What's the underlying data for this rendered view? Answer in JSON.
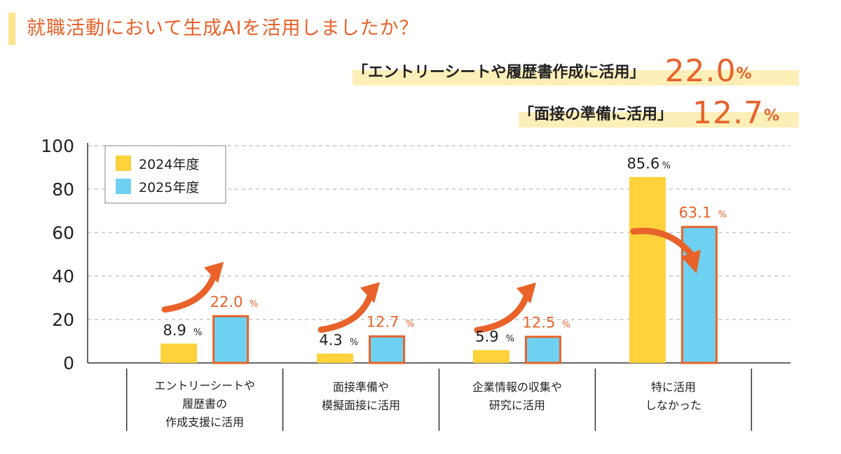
{
  "title": "就職活動において生成AIを活用しましたか？",
  "highlights": [
    {
      "text": "「エントリーシートや履歴書作成に活用」",
      "value": "22.0",
      "unit": "%"
    },
    {
      "text": "「面接の準備に活用」",
      "value": "12.7",
      "unit": "%"
    }
  ],
  "colors": {
    "accent": "#e8622a",
    "bar_2024": "#fdd23b",
    "bar_2025": "#6fd1f1",
    "bar_2025_border": "#e8622a",
    "grid": "#bbbbbb",
    "highlight_bg": "#fdefb8"
  },
  "chart_data": {
    "type": "bar",
    "title": "",
    "xlabel": "",
    "ylabel": "",
    "ylim": [
      0,
      100
    ],
    "yticks": [
      "0",
      "20",
      "40",
      "60",
      "80",
      "100"
    ],
    "grid": true,
    "legend_position": "top-left",
    "categories": [
      [
        "エントリーシートや",
        "履歴書の",
        "作成支援に活用"
      ],
      [
        "面接準備や",
        "模擬面接に活用"
      ],
      [
        "企業情報の収集や",
        "研究に活用"
      ],
      [
        "特に活用",
        "しなかった"
      ]
    ],
    "series": [
      {
        "name": "2024年度",
        "values": [
          8.9,
          4.3,
          5.9,
          85.6
        ],
        "labels": [
          "8.9",
          "4.3",
          "5.9",
          "85.6"
        ]
      },
      {
        "name": "2025年度",
        "values": [
          22.0,
          12.7,
          12.5,
          63.1
        ],
        "labels": [
          "22.0",
          "12.7",
          "12.5",
          "63.1"
        ]
      }
    ],
    "value_unit": "%",
    "annotations": [
      "arrow-up",
      "arrow-up",
      "arrow-up",
      "arrow-down"
    ]
  }
}
